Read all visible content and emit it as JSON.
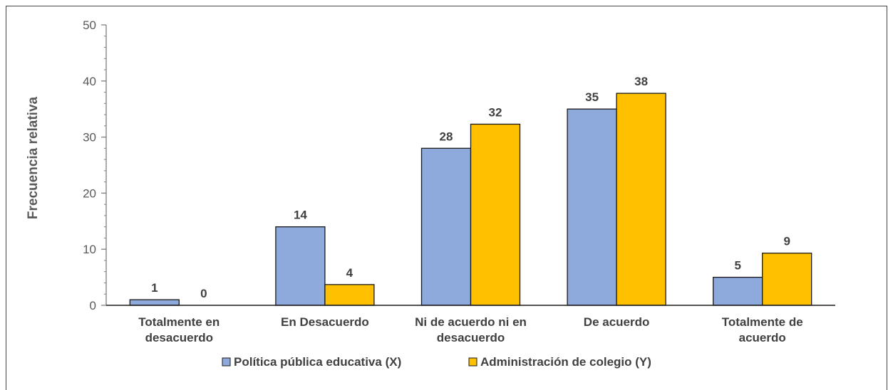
{
  "chart_data": {
    "type": "bar",
    "title": "",
    "xlabel": "",
    "ylabel": "Frecuencia relativa",
    "ylim": [
      0,
      50
    ],
    "yticks": [
      0,
      10,
      20,
      30,
      40,
      50
    ],
    "grid": false,
    "legend_position": "bottom",
    "categories": [
      [
        "Totalmente en",
        "desacuerdo"
      ],
      [
        "En Desacuerdo"
      ],
      [
        "Ni de acuerdo ni en",
        "desacuerdo"
      ],
      [
        "De acuerdo"
      ],
      [
        "Totalmente de",
        "acuerdo"
      ]
    ],
    "series": [
      {
        "name": "Política pública educativa (X)",
        "values": [
          1,
          14,
          28,
          35,
          5
        ],
        "value_labels": [
          "1",
          "14",
          "28",
          "35",
          "5"
        ],
        "color": "#8EA9DB"
      },
      {
        "name": "Administración de colegio (Y)",
        "values": [
          0,
          3.7,
          32.3,
          37.8,
          9.3
        ],
        "value_labels": [
          "0",
          "4",
          "32",
          "38",
          "9"
        ],
        "color": "#FFC000"
      }
    ]
  }
}
